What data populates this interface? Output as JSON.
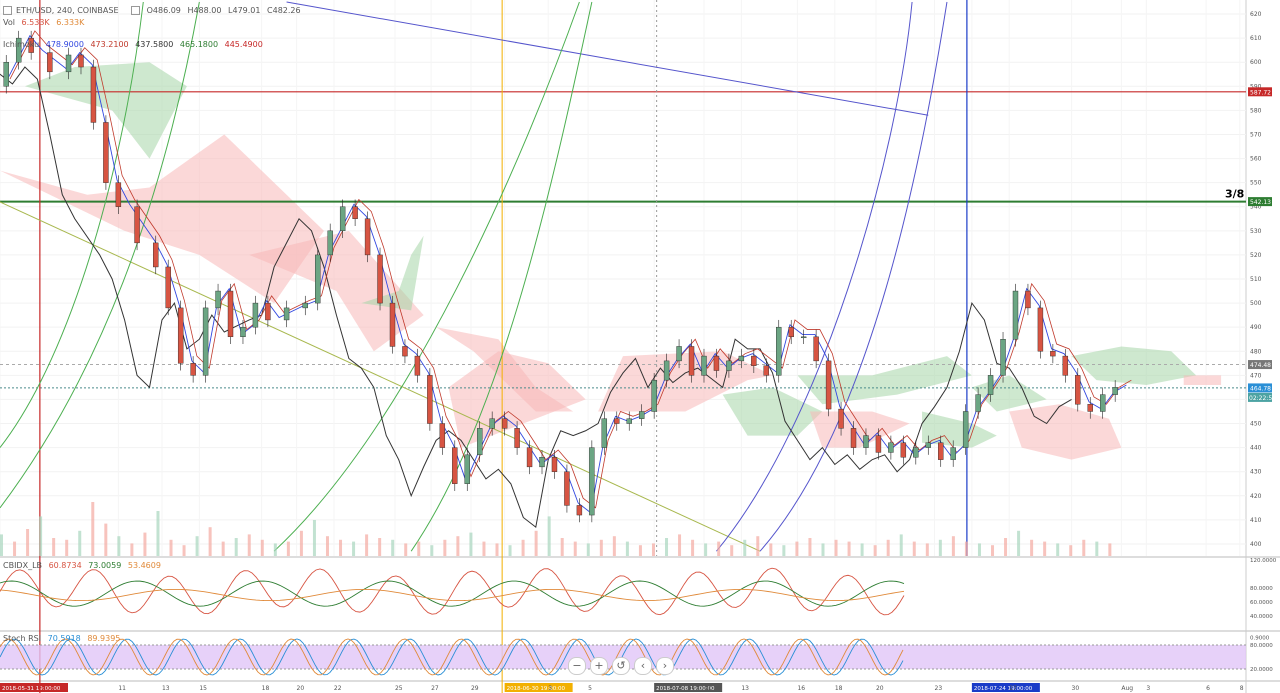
{
  "header": {
    "symbol": "ETH/USD, 240, COINBASE",
    "ohlc": {
      "o": "O486.09",
      "h": "H488.00",
      "l": "L479.01",
      "c": "C482.26"
    },
    "vol_label": "Vol",
    "vol_values": [
      "6.533K",
      "6.333K"
    ],
    "ichimoku_label": "Ichimoku",
    "ichimoku_values": [
      "478.9000",
      "473.2100",
      "437.5800",
      "465.1800",
      "445.4900"
    ],
    "cbidx_label": "CBIDX_LB",
    "cbidx_values": [
      "60.8734",
      "73.0059",
      "53.4609"
    ],
    "stoch_label": "Stoch RSI",
    "stoch_values": [
      "70.5918",
      "89.9395"
    ]
  },
  "annotations": {
    "fraction_label": "3/8",
    "price_tags": [
      "587.72",
      "542.13",
      "474.48",
      "464.78",
      "02:22:53"
    ],
    "date_tags": [
      "2018-05-31 19:00:00",
      "2018-06-30 19:00:00",
      "2018-07-08 19:00:00",
      "2018-07-24 19:00:00"
    ]
  },
  "toolbar": {
    "zoom_out": "−",
    "zoom_in": "+",
    "reset": "↺",
    "left": "‹",
    "right": "›"
  },
  "colors": {
    "up": "#6ba583",
    "down": "#d75442",
    "tenkan": "#3248e0",
    "kijun": "#c0392b",
    "cloud_up": "#a5d6a7",
    "cloud_down": "#f8b8b8",
    "chikou": "#333333",
    "level_red": "#c62828",
    "level_green": "#2e7d32",
    "vline_blue": "#1a3cc8"
  },
  "chart_data": {
    "type": "candlestick",
    "title": "ETH/USD, 240, COINBASE",
    "ylim": [
      395,
      625
    ],
    "y_ticks": [
      400,
      410,
      420,
      430,
      440,
      450,
      460,
      470,
      480,
      490,
      500,
      510,
      520,
      530,
      540,
      550,
      560,
      570,
      580,
      590,
      600,
      610,
      620
    ],
    "x_ticks": [
      "2018-05-31 19:00:00",
      "11",
      "13",
      "15",
      "18",
      "20",
      "22",
      "25",
      "27",
      "29",
      "2018-06-30 19:00:00",
      "3",
      "5",
      "2018-07-08 19:00:00",
      "11",
      "13",
      "16",
      "18",
      "20",
      "23",
      "2018-07-24 19:00:00",
      "27",
      "30",
      "Aug",
      "3",
      "6",
      "8"
    ],
    "horizontal_levels": [
      587.72,
      542.13,
      474.48,
      464.78
    ],
    "price_path": [
      [
        0,
        590
      ],
      [
        0.01,
        600
      ],
      [
        0.02,
        610
      ],
      [
        0.03,
        604
      ],
      [
        0.05,
        596
      ],
      [
        0.06,
        603
      ],
      [
        0.07,
        598
      ],
      [
        0.08,
        575
      ],
      [
        0.09,
        550
      ],
      [
        0.1,
        540
      ],
      [
        0.12,
        525
      ],
      [
        0.13,
        515
      ],
      [
        0.14,
        498
      ],
      [
        0.15,
        475
      ],
      [
        0.16,
        470
      ],
      [
        0.17,
        498
      ],
      [
        0.18,
        505
      ],
      [
        0.19,
        486
      ],
      [
        0.2,
        490
      ],
      [
        0.21,
        500
      ],
      [
        0.22,
        493
      ],
      [
        0.24,
        498
      ],
      [
        0.25,
        500
      ],
      [
        0.26,
        520
      ],
      [
        0.27,
        530
      ],
      [
        0.28,
        540
      ],
      [
        0.29,
        535
      ],
      [
        0.3,
        520
      ],
      [
        0.31,
        500
      ],
      [
        0.32,
        482
      ],
      [
        0.33,
        478
      ],
      [
        0.34,
        470
      ],
      [
        0.35,
        450
      ],
      [
        0.36,
        440
      ],
      [
        0.37,
        425
      ],
      [
        0.38,
        437
      ],
      [
        0.39,
        448
      ],
      [
        0.4,
        452
      ],
      [
        0.41,
        448
      ],
      [
        0.42,
        440
      ],
      [
        0.43,
        432
      ],
      [
        0.44,
        436
      ],
      [
        0.45,
        430
      ],
      [
        0.46,
        416
      ],
      [
        0.47,
        412
      ],
      [
        0.48,
        440
      ],
      [
        0.49,
        452
      ],
      [
        0.5,
        450
      ],
      [
        0.51,
        452
      ],
      [
        0.52,
        455
      ],
      [
        0.53,
        468
      ],
      [
        0.54,
        476
      ],
      [
        0.55,
        482
      ],
      [
        0.56,
        470
      ],
      [
        0.57,
        478
      ],
      [
        0.58,
        472
      ],
      [
        0.59,
        476
      ],
      [
        0.6,
        478
      ],
      [
        0.61,
        474
      ],
      [
        0.62,
        470
      ],
      [
        0.63,
        490
      ],
      [
        0.64,
        486
      ],
      [
        0.65,
        486
      ],
      [
        0.66,
        476
      ],
      [
        0.67,
        456
      ],
      [
        0.68,
        448
      ],
      [
        0.69,
        440
      ],
      [
        0.7,
        445
      ],
      [
        0.71,
        438
      ],
      [
        0.72,
        442
      ],
      [
        0.73,
        436
      ],
      [
        0.74,
        440
      ],
      [
        0.75,
        442
      ],
      [
        0.76,
        435
      ],
      [
        0.77,
        440
      ],
      [
        0.78,
        455
      ],
      [
        0.79,
        462
      ],
      [
        0.8,
        470
      ],
      [
        0.81,
        485
      ],
      [
        0.82,
        505
      ],
      [
        0.83,
        498
      ],
      [
        0.84,
        480
      ],
      [
        0.85,
        478
      ],
      [
        0.86,
        470
      ],
      [
        0.87,
        458
      ],
      [
        0.88,
        455
      ],
      [
        0.89,
        462
      ],
      [
        0.9,
        465
      ]
    ],
    "volume_series": [
      12,
      8,
      15,
      22,
      10,
      9,
      14,
      30,
      18,
      11,
      7,
      13,
      25,
      9,
      6,
      11,
      16,
      8,
      10,
      12,
      9,
      7,
      8,
      14,
      20,
      11,
      9,
      8,
      12,
      10,
      9,
      7,
      8,
      6,
      9,
      11,
      13,
      8,
      7,
      6,
      9,
      14,
      22,
      10,
      8,
      7,
      9,
      11,
      8,
      6,
      7,
      10,
      12,
      9,
      7,
      8,
      6,
      9,
      11,
      7,
      6,
      8,
      10,
      7,
      9,
      8,
      7,
      6,
      9,
      12,
      8,
      7,
      9,
      11,
      8,
      7,
      6,
      10,
      14,
      9,
      8,
      7,
      6,
      9,
      8,
      7
    ]
  }
}
